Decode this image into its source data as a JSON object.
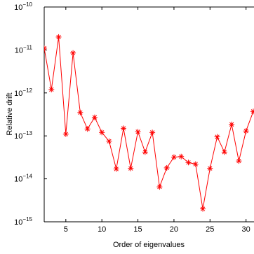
{
  "chart_data": {
    "type": "line",
    "title": "",
    "xlabel": "Order of eigenvalues",
    "ylabel": "Relative drift",
    "xlim": [
      2,
      31.2
    ],
    "ylim_log10": [
      -15,
      -10
    ],
    "y_scale": "log",
    "xticks": [
      5,
      10,
      15,
      20,
      25,
      30
    ],
    "xtick_labels": [
      "5",
      "10",
      "15",
      "20",
      "25",
      "30"
    ],
    "yticks_log10": [
      -15,
      -14,
      -13,
      -12,
      -11,
      -10
    ],
    "ytick_base": "10",
    "ytick_exponents": [
      "−15",
      "−14",
      "−13",
      "−12",
      "−11",
      "−10"
    ],
    "grid": false,
    "series": [
      {
        "color": "#ff0000",
        "marker": "asterisk",
        "x": [
          2,
          3,
          4,
          5,
          6,
          7,
          8,
          9,
          10,
          11,
          12,
          13,
          14,
          15,
          16,
          17,
          18,
          19,
          20,
          21,
          22,
          23,
          24,
          25,
          26,
          27,
          28,
          29,
          30,
          31
        ],
        "y": [
          1.1e-11,
          1.2e-12,
          2e-11,
          1.1e-13,
          8.5e-12,
          3.5e-13,
          1.45e-13,
          2.7e-13,
          1.2e-13,
          7.5e-14,
          1.7e-14,
          1.5e-13,
          1.75e-14,
          1.25e-13,
          4.2e-14,
          1.2e-13,
          6.5e-15,
          1.8e-14,
          3.2e-14,
          3.3e-14,
          2.4e-14,
          2.2e-14,
          2e-15,
          1.75e-14,
          9.5e-14,
          4.2e-14,
          1.85e-13,
          2.6e-14,
          1.3e-13,
          3.7e-13
        ]
      }
    ]
  }
}
